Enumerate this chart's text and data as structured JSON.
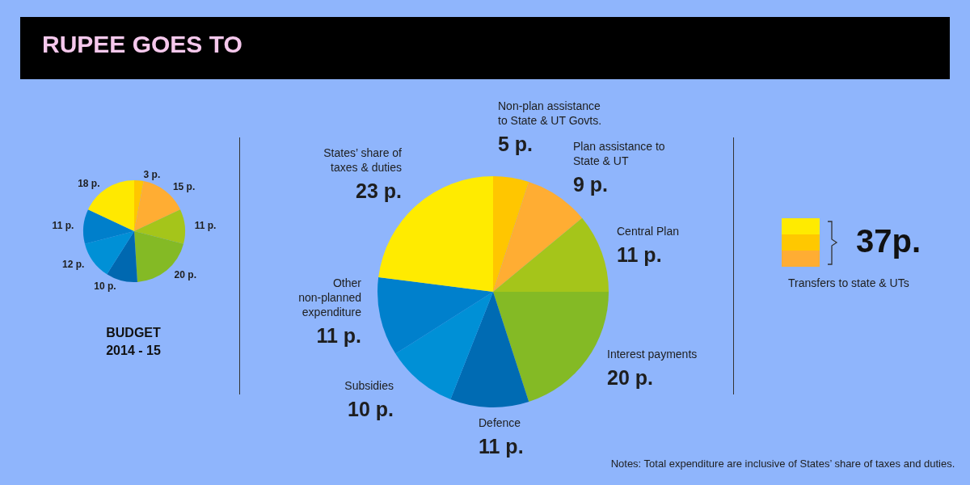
{
  "chart_data": [
    {
      "type": "other",
      "title": "RUPEE GOES TO"
    },
    {
      "type": "pie",
      "title": "BUDGET 2014 - 15",
      "categories": [
        null,
        null,
        null,
        null,
        null,
        null,
        null,
        null
      ],
      "values": [
        3,
        15,
        11,
        20,
        10,
        12,
        11,
        18
      ],
      "colors": [
        "#ffc600",
        "#ffad33",
        "#a5c51a",
        "#84ba25",
        "#0068b0",
        "#0090d6",
        "#007fcb",
        "#ffe900"
      ],
      "value_labels": [
        "3 p.",
        "15 p.",
        "11 p.",
        "20 p.",
        "10 p.",
        "12 p.",
        "11 p.",
        "18 p."
      ]
    },
    {
      "type": "pie",
      "categories": [
        "Non-plan assistance to State & UT Govts.",
        "Plan assistance to State & UT",
        "Central Plan",
        "Interest payments",
        "Defence",
        "Subsidies",
        "Other non-planned expenditure",
        "States’ share of taxes & duties"
      ],
      "values": [
        5,
        9,
        11,
        20,
        11,
        10,
        11,
        23
      ],
      "colors": [
        "#ffc600",
        "#ffad33",
        "#a5c51a",
        "#84ba25",
        "#006bb3",
        "#0090d6",
        "#0080cc",
        "#ffeb00"
      ],
      "value_labels": [
        "5 p.",
        "9 p.",
        "11 p.",
        "20 p.",
        "11 p.",
        "10 p.",
        "11 p.",
        "23 p."
      ],
      "annotations": [
        "Notes: Total expenditure are inclusive of States’ share of taxes and duties."
      ]
    },
    {
      "type": "other",
      "annotations": [
        "37p.",
        "Transfers to state & UTs"
      ]
    }
  ]
}
